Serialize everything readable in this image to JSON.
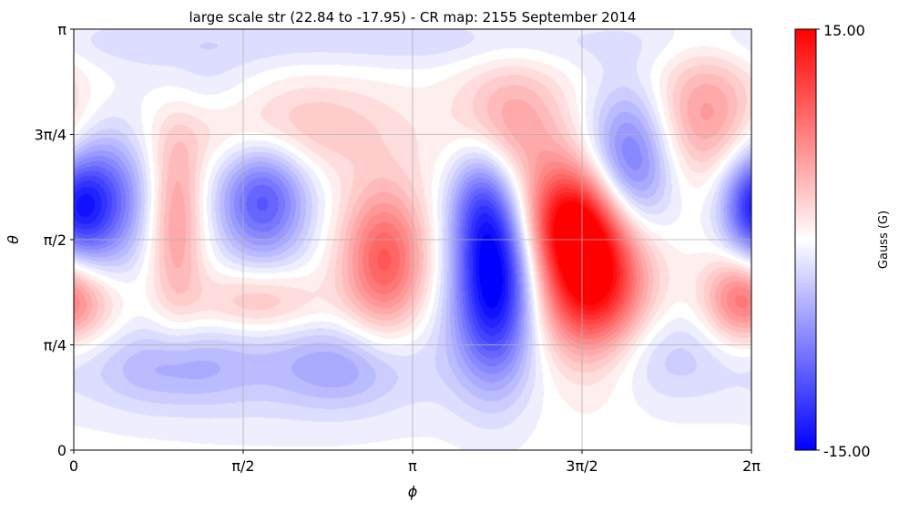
{
  "chart_data": {
    "type": "heatmap",
    "title": "large scale str (22.84 to -17.95) - CR map: 2155 September 2014",
    "xlabel": "ϕ",
    "ylabel": "θ",
    "xlim": [
      0,
      6.283185
    ],
    "ylim": [
      0,
      3.141593
    ],
    "x_ticks": [
      {
        "value": 0,
        "label": "0"
      },
      {
        "value": 1.570796,
        "label": "π/2"
      },
      {
        "value": 3.141593,
        "label": "π"
      },
      {
        "value": 4.712389,
        "label": "3π/2"
      },
      {
        "value": 6.283185,
        "label": "2π"
      }
    ],
    "y_ticks": [
      {
        "value": 0,
        "label": "0"
      },
      {
        "value": 0.785398,
        "label": "π/4"
      },
      {
        "value": 1.570796,
        "label": "π/2"
      },
      {
        "value": 2.356194,
        "label": "3π/4"
      },
      {
        "value": 3.141593,
        "label": "π"
      }
    ],
    "grid": true,
    "colormap": "bwr",
    "colorbar": {
      "label": "Gauss (G)",
      "min": -15.0,
      "max": 15.0,
      "min_label": "-15.00",
      "max_label": "15.00",
      "color_low": "#0000ff",
      "color_mid": "#ffffff",
      "color_high": "#ff0000"
    },
    "blobs": [
      {
        "phi": 0.25,
        "theta": 1.87,
        "value": -10,
        "sx": 0.3,
        "sy": 0.36
      },
      {
        "phi": 0.01,
        "theta": 2.15,
        "value": 3,
        "sx": 0.2,
        "sy": 0.25
      },
      {
        "phi": 0.05,
        "theta": 1.1,
        "value": 5,
        "sx": 0.3,
        "sy": 0.22
      },
      {
        "phi": 0.95,
        "theta": 1.7,
        "value": 6,
        "sx": 0.18,
        "sy": 0.5
      },
      {
        "phi": 1.75,
        "theta": 1.87,
        "value": -10,
        "sx": 0.3,
        "sy": 0.32
      },
      {
        "phi": 1.72,
        "theta": 1.1,
        "value": 5,
        "sx": 0.45,
        "sy": 0.18
      },
      {
        "phi": 2.0,
        "theta": 2.4,
        "value": 4,
        "sx": 0.7,
        "sy": 0.25
      },
      {
        "phi": 2.88,
        "theta": 1.4,
        "value": 10,
        "sx": 0.28,
        "sy": 0.4
      },
      {
        "phi": 3.9,
        "theta": 1.3,
        "value": -16,
        "sx": 0.26,
        "sy": 0.5
      },
      {
        "phi": 3.75,
        "theta": 1.9,
        "value": -5,
        "sx": 0.2,
        "sy": 0.3
      },
      {
        "phi": 4.05,
        "theta": 2.4,
        "value": 6,
        "sx": 0.35,
        "sy": 0.35
      },
      {
        "phi": 4.8,
        "theta": 1.35,
        "value": 18,
        "sx": 0.35,
        "sy": 0.45
      },
      {
        "phi": 4.55,
        "theta": 1.75,
        "value": 8,
        "sx": 0.3,
        "sy": 0.28
      },
      {
        "phi": 5.15,
        "theta": 2.1,
        "value": -10,
        "sx": 0.28,
        "sy": 0.4
      },
      {
        "phi": 5.85,
        "theta": 2.5,
        "value": 6,
        "sx": 0.35,
        "sy": 0.35
      },
      {
        "phi": 6.28,
        "theta": 1.87,
        "value": -8,
        "sx": 0.2,
        "sy": 0.3
      },
      {
        "phi": 6.15,
        "theta": 1.15,
        "value": 5,
        "sx": 0.22,
        "sy": 0.25
      },
      {
        "phi": 2.0,
        "theta": 0.7,
        "value": -3,
        "sx": 1.4,
        "sy": 0.35
      },
      {
        "phi": 0.9,
        "theta": 0.6,
        "value": -3,
        "sx": 0.5,
        "sy": 0.2
      },
      {
        "phi": 2.5,
        "theta": 0.6,
        "value": -3,
        "sx": 0.4,
        "sy": 0.2
      },
      {
        "phi": 5.4,
        "theta": 0.7,
        "value": -3,
        "sx": 0.5,
        "sy": 0.25
      },
      {
        "phi": 0.8,
        "theta": 3.05,
        "value": -2,
        "sx": 1.2,
        "sy": 0.15
      },
      {
        "phi": 3.6,
        "theta": 3.05,
        "value": -2,
        "sx": 1.2,
        "sy": 0.15
      },
      {
        "phi": 1.2,
        "theta": 2.7,
        "value": -2,
        "sx": 0.4,
        "sy": 0.2
      }
    ]
  }
}
